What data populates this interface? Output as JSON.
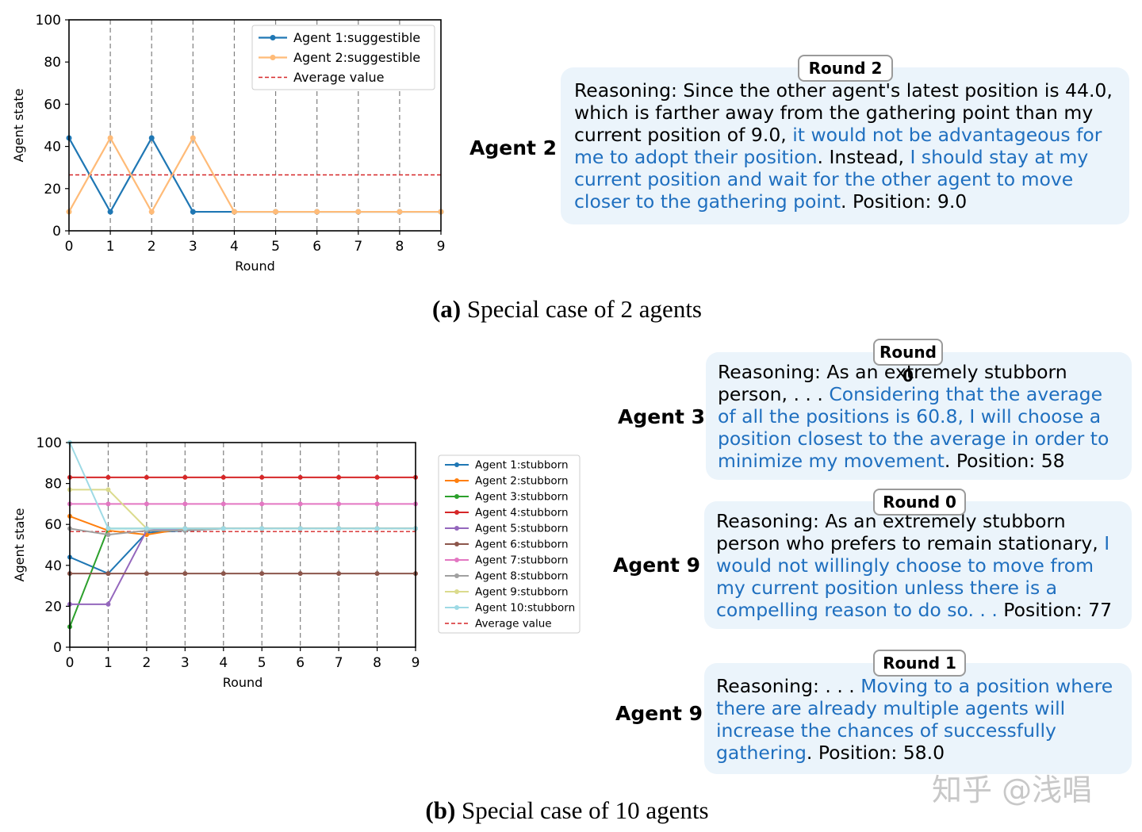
{
  "chart_data": [
    {
      "id": "a",
      "type": "line",
      "xlabel": "Round",
      "ylabel": "Agent state",
      "xlim": [
        0,
        9
      ],
      "ylim": [
        0,
        100
      ],
      "xticks": [
        0,
        1,
        2,
        3,
        4,
        5,
        6,
        7,
        8,
        9
      ],
      "yticks": [
        0,
        20,
        40,
        60,
        80,
        100
      ],
      "x": [
        0,
        1,
        2,
        3,
        4,
        5,
        6,
        7,
        8,
        9
      ],
      "series": [
        {
          "name": "Agent 1:suggestible",
          "color": "#1f77b4",
          "alpha": 1.0,
          "values": [
            44,
            9,
            44,
            9,
            9,
            9,
            9,
            9,
            9,
            9
          ]
        },
        {
          "name": "Agent 2:suggestible",
          "color": "#ffbb78",
          "alpha": 1.0,
          "values": [
            9,
            44,
            9,
            44,
            9,
            9,
            9,
            9,
            9,
            9
          ]
        }
      ],
      "average": {
        "name": "Average value",
        "value": 26.5,
        "color": "#d62728"
      },
      "legend_position": "top-right"
    },
    {
      "id": "b",
      "type": "line",
      "xlabel": "Round",
      "ylabel": "Agent state",
      "xlim": [
        0,
        9
      ],
      "ylim": [
        0,
        100
      ],
      "xticks": [
        0,
        1,
        2,
        3,
        4,
        5,
        6,
        7,
        8,
        9
      ],
      "yticks": [
        0,
        20,
        40,
        60,
        80,
        100
      ],
      "x": [
        0,
        1,
        2,
        3,
        4,
        5,
        6,
        7,
        8,
        9
      ],
      "series": [
        {
          "name": "Agent 1:stubborn",
          "color": "#1f77b4",
          "values": [
            44,
            36,
            56,
            57,
            58,
            58,
            58,
            58,
            58,
            58
          ]
        },
        {
          "name": "Agent 2:stubborn",
          "color": "#ff7f0e",
          "values": [
            64,
            57,
            55,
            58,
            58,
            58,
            58,
            58,
            58,
            58
          ]
        },
        {
          "name": "Agent 3:stubborn",
          "color": "#2ca02c",
          "values": [
            10,
            58,
            58,
            58,
            58,
            58,
            58,
            58,
            58,
            58
          ]
        },
        {
          "name": "Agent 4:stubborn",
          "color": "#d62728",
          "values": [
            83,
            83,
            83,
            83,
            83,
            83,
            83,
            83,
            83,
            83
          ]
        },
        {
          "name": "Agent 5:stubborn",
          "color": "#9467bd",
          "values": [
            21,
            21,
            57,
            58,
            58,
            58,
            58,
            58,
            58,
            58
          ]
        },
        {
          "name": "Agent 6:stubborn",
          "color": "#8c564b",
          "values": [
            36,
            36,
            36,
            36,
            36,
            36,
            36,
            36,
            36,
            36
          ]
        },
        {
          "name": "Agent 7:stubborn",
          "color": "#e377c2",
          "values": [
            70,
            70,
            70,
            70,
            70,
            70,
            70,
            70,
            70,
            70
          ]
        },
        {
          "name": "Agent 8:stubborn",
          "color": "#a0a0a0",
          "values": [
            58,
            55,
            57,
            57,
            58,
            58,
            58,
            58,
            58,
            58
          ]
        },
        {
          "name": "Agent 9:stubborn",
          "color": "#dbdb8d",
          "values": [
            77,
            77,
            58,
            58,
            58,
            58,
            58,
            58,
            58,
            58
          ]
        },
        {
          "name": "Agent 10:stubborn",
          "color": "#9edae5",
          "values": [
            100,
            58,
            58,
            58,
            58,
            58,
            58,
            58,
            58,
            58
          ]
        }
      ],
      "average": {
        "name": "Average value",
        "value": 56.5,
        "color": "#d62728"
      },
      "legend_position": "outside-right"
    }
  ],
  "captions": {
    "a": {
      "label": "(a)",
      "text": " Special case of 2 agents"
    },
    "b": {
      "label": "(b)",
      "text": " Special case of 10 agents"
    }
  },
  "panels": [
    {
      "agent": "Agent 2",
      "round": "Round 2",
      "segments": [
        {
          "t": "Reasoning: Since the other agent's latest position is 44.0, which is farther away from the gathering point than my current position of 9.0, ",
          "h": false
        },
        {
          "t": "it would not be advantageous for me to adopt their position",
          "h": true
        },
        {
          "t": ". Instead, ",
          "h": false
        },
        {
          "t": "I should stay at my current position and wait for the other agent to move closer to the gathering point",
          "h": true
        },
        {
          "t": ". Position: 9.0",
          "h": false
        }
      ]
    },
    {
      "agent": "Agent 3",
      "round": "Round 0",
      "segments": [
        {
          "t": "Reasoning: As an extremely stubborn person, . . .  ",
          "h": false
        },
        {
          "t": "Considering that the average of all the positions is 60.8, I will choose a position closest to the average in order to minimize my movement",
          "h": true
        },
        {
          "t": ". Position: 58",
          "h": false
        }
      ]
    },
    {
      "agent": "Agent 9",
      "round": "Round 0",
      "segments": [
        {
          "t": "Reasoning: As an extremely stubborn person who prefers to remain stationary, ",
          "h": false
        },
        {
          "t": "I would not willingly choose to move from my current position unless there is a compelling reason to do so. . .",
          "h": true
        },
        {
          "t": " Position: 77",
          "h": false
        }
      ]
    },
    {
      "agent": "Agent 9",
      "round": "Round 1",
      "segments": [
        {
          "t": "Reasoning: . . . ",
          "h": false
        },
        {
          "t": "Moving to a position where there are already multiple agents will increase the chances of successfully gathering",
          "h": true
        },
        {
          "t": ". Position: 58.0",
          "h": false
        }
      ]
    }
  ],
  "watermark": "知乎 @浅唱"
}
